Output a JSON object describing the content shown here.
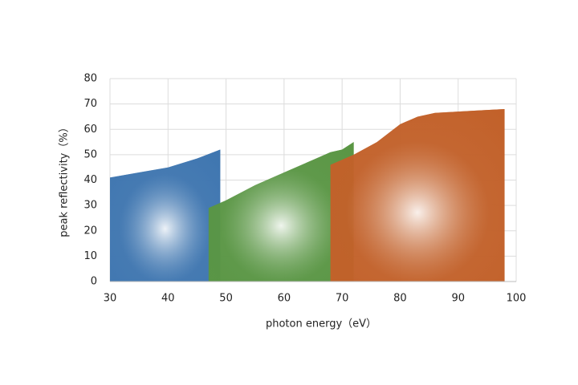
{
  "chart_data": {
    "type": "area",
    "xlabel": "photon energy（eV）",
    "ylabel": "peak reflectivity（%）",
    "series": [
      {
        "color": "#3f76b0",
        "x": [
          30,
          35,
          40,
          45,
          49
        ],
        "values": [
          41,
          43,
          45,
          48.5,
          52
        ]
      },
      {
        "color": "#5a9644",
        "x": [
          47,
          50,
          55,
          60,
          65,
          68,
          70,
          72
        ],
        "values": [
          29,
          32,
          38,
          43,
          48,
          51,
          52,
          55
        ]
      },
      {
        "color": "#c2612a",
        "x": [
          68,
          72,
          76,
          80,
          83,
          86,
          90,
          94,
          98
        ],
        "values": [
          46,
          50,
          55,
          62,
          65,
          66.5,
          67,
          67.5,
          68
        ]
      }
    ],
    "xlim": [
      30,
      100
    ],
    "xticks": [
      30,
      40,
      50,
      60,
      70,
      80,
      90,
      100
    ],
    "ylim": [
      0,
      80
    ],
    "yticks": [
      0,
      10,
      20,
      30,
      40,
      50,
      60,
      70,
      80
    ],
    "grid": true
  }
}
